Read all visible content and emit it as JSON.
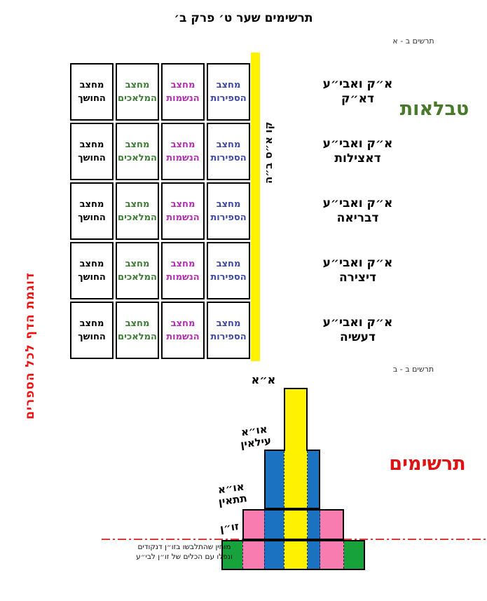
{
  "title": "תרשימים שער ט׳ פרק ב׳",
  "section_a": {
    "tag": "תרשים ב - א",
    "heading": "טבלאות",
    "left_note": "דוגמת הדף לכל הספרים",
    "kav_label": "קו א״ס ב״ה",
    "table": {
      "columns": [
        {
          "line1": "מחצב",
          "line2": "הספירות",
          "color": "#3d49a5"
        },
        {
          "line1": "מחצב",
          "line2": "הנשמות",
          "color": "#b32fb3"
        },
        {
          "line1": "מחצב",
          "line2": "המלאכים",
          "color": "#3e7d35"
        },
        {
          "line1": "מחצב",
          "line2": "החושך",
          "color": "#000000"
        }
      ],
      "row_labels": [
        {
          "line1": "א״ק ואבי״ע",
          "line2": "דא״ק"
        },
        {
          "line1": "א״ק ואבי״ע",
          "line2": "דאצילות"
        },
        {
          "line1": "א״ק ואבי״ע",
          "line2": "דבריאה"
        },
        {
          "line1": "א״ק ואבי״ע",
          "line2": "דיצירה"
        },
        {
          "line1": "א״ק ואבי״ע",
          "line2": "דעשיה"
        }
      ]
    }
  },
  "section_b": {
    "tag": "תרשים ב - ב",
    "heading": "תרשימים",
    "labels": {
      "aa": "א״א",
      "ilain_line1": "או״א",
      "ilain_line2": "עילאין",
      "tatain_line1": "או״א",
      "tatain_line2": "תתאין",
      "zun": "זו״ן"
    },
    "caption": {
      "line1": "מוחין שהתלבשו בזו״ן דנקודים",
      "line2": "ונפלו עם הכלים של זו״ן לבי״ע"
    }
  },
  "colors": {
    "yellow": "#fef200",
    "blue": "#1b72c0",
    "pink": "#f97cb1",
    "green": "#18a23b",
    "heading_green": "#497a2b",
    "heading_red": "#dc1414",
    "note_red": "#ee1111",
    "line_red": "#dd3a3a"
  }
}
